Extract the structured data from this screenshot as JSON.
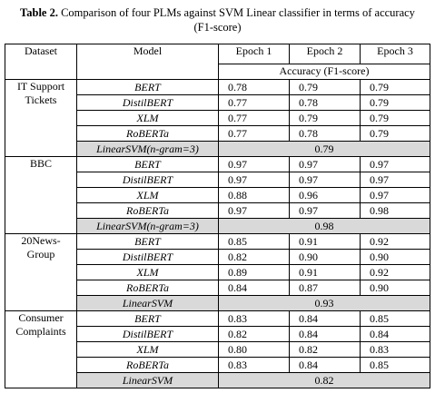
{
  "caption": {
    "label": "Table 2.",
    "text": "Comparison of four PLMs against SVM Linear classifier in terms of accuracy (F1-score)"
  },
  "table": {
    "header": [
      "Dataset",
      "Model",
      "Epoch 1",
      "Epoch 2",
      "Epoch 3"
    ],
    "subheader": "Accuracy (F1-score)",
    "groups": [
      {
        "dataset": "IT Support Tickets",
        "rows": [
          [
            "BERT",
            "0.78",
            "0.79",
            "0.79"
          ],
          [
            "DistilBERT",
            "0.77",
            "0.78",
            "0.79"
          ],
          [
            "XLM",
            "0.77",
            "0.79",
            "0.79"
          ],
          [
            "RoBERTa",
            "0.77",
            "0.78",
            "0.79"
          ]
        ],
        "baseline": {
          "model": "LinearSVM(n-gram=3)",
          "value": "0.79"
        }
      },
      {
        "dataset": "BBC",
        "rows": [
          [
            "BERT",
            "0.97",
            "0.97",
            "0.97"
          ],
          [
            "DistilBERT",
            "0.97",
            "0.97",
            "0.97"
          ],
          [
            "XLM",
            "0.88",
            "0.96",
            "0.97"
          ],
          [
            "RoBERTa",
            "0.97",
            "0.97",
            "0.98"
          ]
        ],
        "baseline": {
          "model": "LinearSVM(n-gram=3)",
          "value": "0.98"
        }
      },
      {
        "dataset": "20News-Group",
        "rows": [
          [
            "BERT",
            "0.85",
            "0.91",
            "0.92"
          ],
          [
            "DistilBERT",
            "0.82",
            "0.90",
            "0.90"
          ],
          [
            "XLM",
            "0.89",
            "0.91",
            "0.92"
          ],
          [
            "RoBERTa",
            "0.84",
            "0.87",
            "0.90"
          ]
        ],
        "baseline": {
          "model": "LinearSVM",
          "value": "0.93"
        }
      },
      {
        "dataset": "Consumer Complaints",
        "rows": [
          [
            "BERT",
            "0.83",
            "0.84",
            "0.85"
          ],
          [
            "DistilBERT",
            "0.82",
            "0.84",
            "0.84"
          ],
          [
            "XLM",
            "0.80",
            "0.82",
            "0.83"
          ],
          [
            "RoBERTa",
            "0.83",
            "0.84",
            "0.85"
          ]
        ],
        "baseline": {
          "model": "LinearSVM",
          "value": "0.82"
        }
      }
    ]
  }
}
